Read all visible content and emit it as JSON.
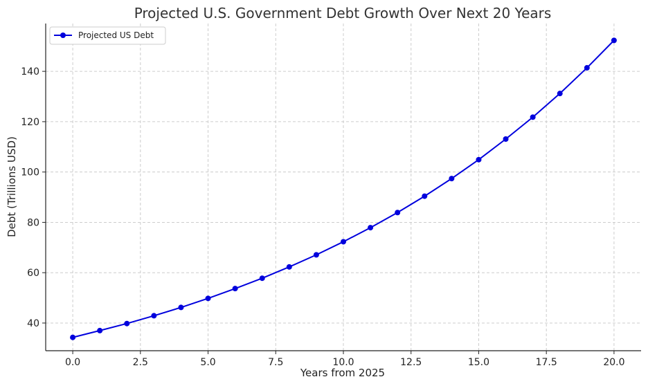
{
  "chart_data": {
    "type": "line",
    "title": "Projected U.S. Government Debt Growth Over Next 20 Years",
    "xlabel": "Years from 2025",
    "ylabel": "Debt (Trillions USD)",
    "xlim": [
      -1,
      21
    ],
    "ylim": [
      29,
      159
    ],
    "x_ticks": [
      0.0,
      2.5,
      5.0,
      7.5,
      10.0,
      12.5,
      15.0,
      17.5,
      20.0
    ],
    "x_tick_labels": [
      "0.0",
      "2.5",
      "5.0",
      "7.5",
      "10.0",
      "12.5",
      "15.0",
      "17.5",
      "20.0"
    ],
    "y_ticks": [
      40,
      60,
      80,
      100,
      120,
      140
    ],
    "y_tick_labels": [
      "40",
      "60",
      "80",
      "100",
      "120",
      "140"
    ],
    "grid": true,
    "legend_position": "top-left",
    "series": [
      {
        "name": "Projected US Debt",
        "color": "#0000dd",
        "marker": "circle",
        "x": [
          0,
          1,
          2,
          3,
          4,
          5,
          6,
          7,
          8,
          9,
          10,
          11,
          12,
          13,
          14,
          15,
          16,
          17,
          18,
          19,
          20
        ],
        "values": [
          34.3,
          37.0,
          39.8,
          42.9,
          46.2,
          49.8,
          53.7,
          57.8,
          62.3,
          67.1,
          72.3,
          77.9,
          83.9,
          90.4,
          97.4,
          104.9,
          113.1,
          121.8,
          131.2,
          141.4,
          152.3
        ]
      }
    ]
  }
}
